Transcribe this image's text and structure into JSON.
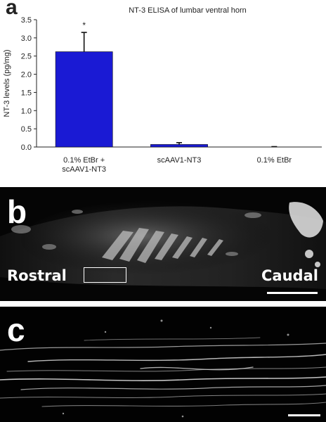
{
  "panels": {
    "a": {
      "letter": "a"
    },
    "b": {
      "letter": "b",
      "left_label": "Rostral",
      "right_label": "Caudal"
    },
    "c": {
      "letter": "c"
    }
  },
  "chart_data": {
    "type": "bar",
    "title": "NT-3 ELISA of lumbar ventral horn",
    "ylabel": "NT-3 levels (pg/mg)",
    "xlabel": "",
    "ylim": [
      0,
      3.5
    ],
    "yticks": [
      0.0,
      0.5,
      1.0,
      1.5,
      2.0,
      2.5,
      3.0,
      3.5
    ],
    "ytick_labels": [
      "0.0",
      "0.5",
      "1.0",
      "1.5",
      "2.0",
      "2.5",
      "3.0",
      "3.5"
    ],
    "categories": [
      [
        "0.1% EtBr +",
        "scAAV1-NT3"
      ],
      [
        "scAAV1-NT3"
      ],
      [
        "0.1% EtBr"
      ]
    ],
    "values": [
      2.62,
      0.07,
      0.0
    ],
    "errors": [
      0.53,
      0.05,
      0.01
    ],
    "bar_color": "#1a1ad4",
    "annotations": [
      {
        "category_index": 0,
        "text": "*"
      }
    ],
    "grid": false,
    "legend": "none"
  }
}
